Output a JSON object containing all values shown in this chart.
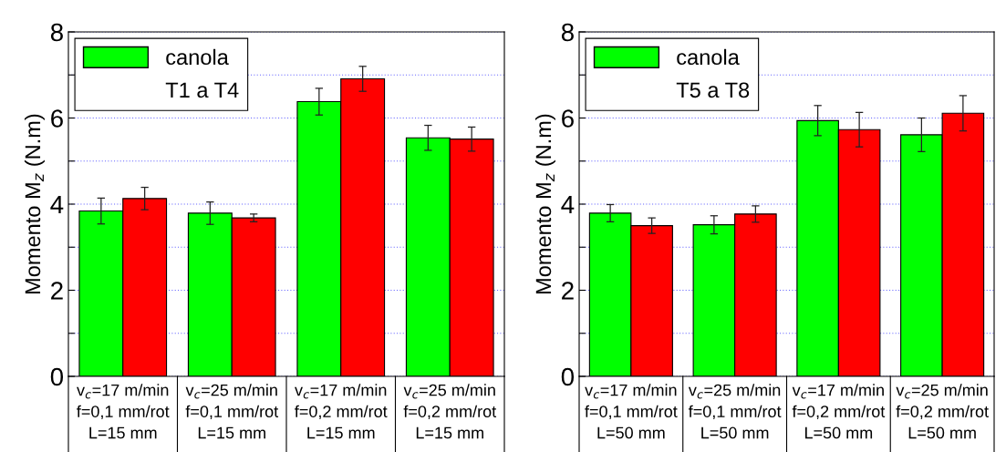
{
  "chart_data": [
    {
      "type": "bar",
      "ylabel": "Momento M$_{z}$ (N.m)",
      "legend_title": "T1 a T4",
      "legend": "top left",
      "grid": "y",
      "categories": [
        "v$_{c}$=17 m/min\nf=0,1 mm/rot\nL=15 mm",
        "v$_{c}$=25 m/min\nf=0,1 mm/rot\nL=15 mm",
        "v$_{c}$=17 m/min\nf=0,2 mm/rot\nL=15 mm",
        "v$_{c}$=25 m/min\nf=0,2 mm/rot\nL=15 mm"
      ],
      "ylim": [
        0,
        8
      ],
      "yticks": [
        0,
        {
          "value": 1,
          "label": null
        },
        2,
        {
          "value": 3,
          "label": null
        },
        4,
        {
          "value": 5,
          "label": null
        },
        6,
        {
          "value": 7,
          "label": null
        },
        8
      ],
      "series": [
        {
          "name": "canola",
          "color": "#00ff00",
          "values": [
            3.84,
            3.79,
            6.38,
            5.54
          ],
          "errors": [
            0.3,
            0.26,
            0.31,
            0.29
          ]
        },
        {
          "color": "#ff0000",
          "values": [
            4.13,
            3.68,
            6.91,
            5.51
          ],
          "errors": [
            0.26,
            0.09,
            0.29,
            0.28
          ]
        }
      ]
    },
    {
      "type": "bar",
      "ylabel": "Momento M$_{z}$ (N.m)",
      "legend_title": "T5 a T8",
      "legend": "top left",
      "grid": "y",
      "categories": [
        "v$_{c}$=17 m/min\nf=0,1 mm/rot\nL=50 mm",
        "v$_{c}$=25 m/min\nf=0,1 mm/rot\nL=50 mm",
        "v$_{c}$=17 m/min\nf=0,2 mm/rot\nL=50 mm",
        "v$_{c}$=25 m/min\nf=0,2 mm/rot\nL=50 mm"
      ],
      "ylim": [
        0,
        8
      ],
      "yticks": [
        0,
        {
          "value": 1,
          "label": null
        },
        2,
        {
          "value": 3,
          "label": null
        },
        4,
        {
          "value": 5,
          "label": null
        },
        6,
        {
          "value": 7,
          "label": null
        },
        8
      ],
      "series": [
        {
          "name": "canola",
          "color": "#00ff00",
          "values": [
            3.79,
            3.52,
            5.94,
            5.61
          ],
          "errors": [
            0.2,
            0.21,
            0.35,
            0.39
          ]
        },
        {
          "color": "#ff0000",
          "values": [
            3.5,
            3.77,
            5.73,
            6.11
          ],
          "errors": [
            0.18,
            0.19,
            0.4,
            0.41
          ]
        }
      ]
    }
  ]
}
